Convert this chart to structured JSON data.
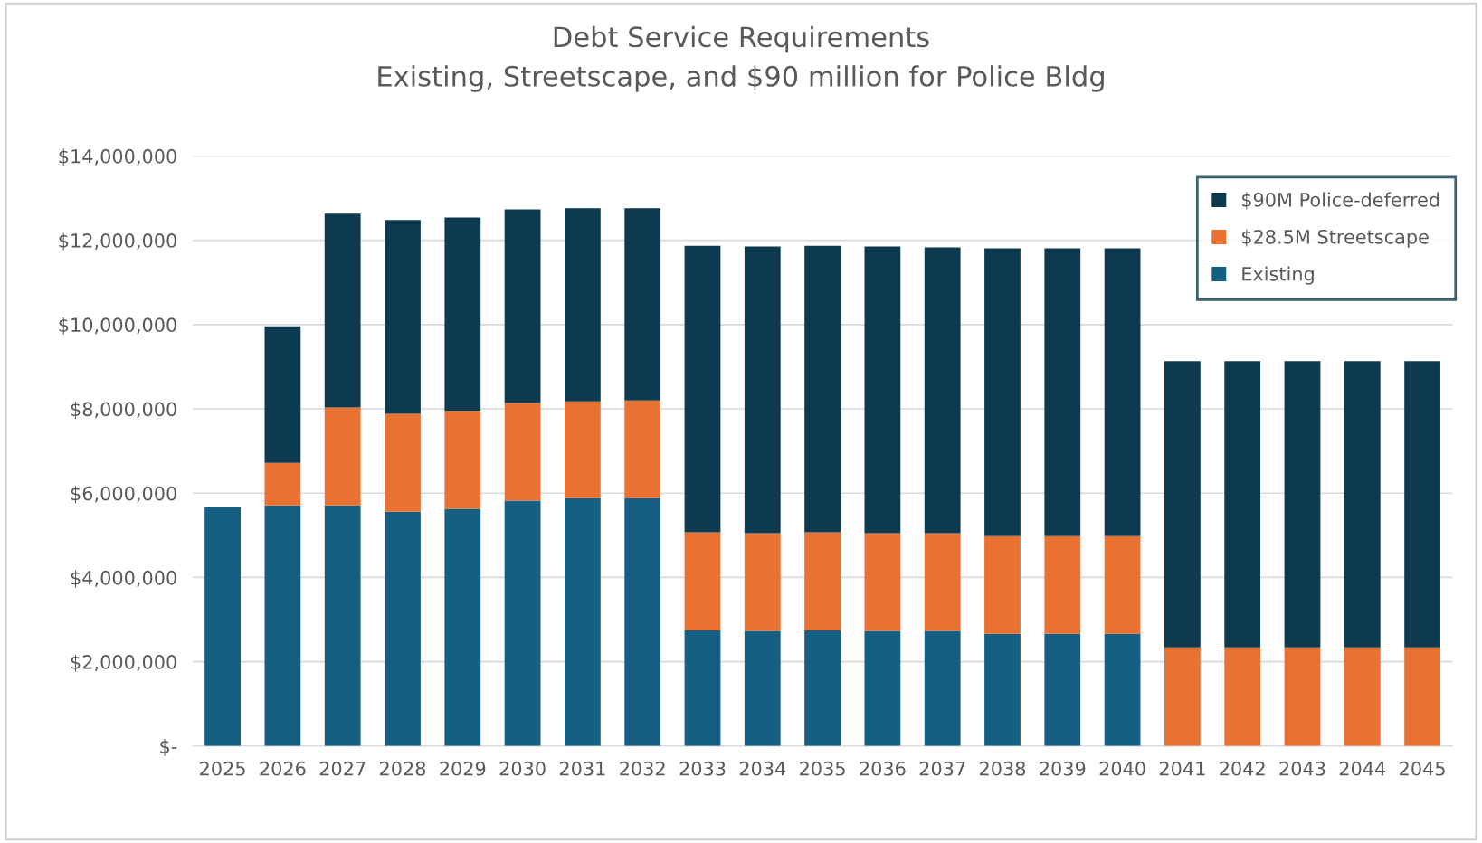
{
  "chart_data": {
    "type": "bar",
    "title": "Debt Service Requirements\nExisting, Streetscape, and $90 million for Police Bldg",
    "categories": [
      "2025",
      "2026",
      "2027",
      "2028",
      "2029",
      "2030",
      "2031",
      "2032",
      "2033",
      "2034",
      "2035",
      "2036",
      "2037",
      "2038",
      "2039",
      "2040",
      "2041",
      "2042",
      "2043",
      "2044",
      "2045"
    ],
    "stacked": true,
    "series": [
      {
        "name": "Existing",
        "color": "#156082",
        "values": [
          5670000,
          5710000,
          5710000,
          5560000,
          5630000,
          5820000,
          5880000,
          5880000,
          2750000,
          2730000,
          2750000,
          2730000,
          2730000,
          2660000,
          2660000,
          2660000,
          0,
          0,
          0,
          0,
          0
        ]
      },
      {
        "name": "$28.5M Streetscape",
        "color": "#e97132",
        "values": [
          0,
          1010000,
          2320000,
          2320000,
          2320000,
          2320000,
          2300000,
          2320000,
          2320000,
          2320000,
          2320000,
          2320000,
          2320000,
          2320000,
          2320000,
          2320000,
          2340000,
          2340000,
          2340000,
          2340000,
          2340000
        ]
      },
      {
        "name": "$90M Police-deferred",
        "color": "#0e3a4f",
        "values": [
          0,
          3240000,
          4600000,
          4600000,
          4590000,
          4590000,
          4580000,
          4560000,
          6800000,
          6800000,
          6800000,
          6800000,
          6780000,
          6830000,
          6830000,
          6830000,
          6790000,
          6790000,
          6790000,
          6790000,
          6790000
        ]
      }
    ],
    "ylim": [
      0,
      14000000
    ],
    "yticks": [
      {
        "value": 0,
        "label": "$-"
      },
      {
        "value": 2000000,
        "label": "$2,000,000"
      },
      {
        "value": 4000000,
        "label": "$4,000,000"
      },
      {
        "value": 6000000,
        "label": "$6,000,000"
      },
      {
        "value": 8000000,
        "label": "$8,000,000"
      },
      {
        "value": 10000000,
        "label": "$10,000,000"
      },
      {
        "value": 12000000,
        "label": "$12,000,000"
      },
      {
        "value": 14000000,
        "label": "$14,000,000"
      }
    ],
    "grid": "y",
    "legend": "top right"
  }
}
